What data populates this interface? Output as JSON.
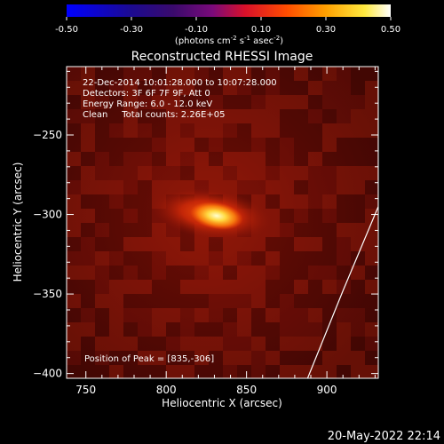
{
  "chart_data": {
    "type": "heatmap",
    "title": "Reconstructed RHESSI Image",
    "xlabel": "Heliocentric X (arcsec)",
    "ylabel": "Heliocentric Y (arcsec)",
    "xlim": [
      738,
      932
    ],
    "ylim": [
      -403,
      -207
    ],
    "xticks": [
      750,
      800,
      850,
      900
    ],
    "yticks": [
      -250,
      -300,
      -350,
      -400
    ],
    "colorbar": {
      "label": "(photons cm",
      "label_sup1": "-2",
      "label_mid": " s",
      "label_sup2": "-1",
      "label_mid2": " asec",
      "label_sup3": "-2",
      "label_end": ")",
      "range": [
        -0.5,
        0.5
      ],
      "ticks": [
        "-0.50",
        "-0.30",
        "-0.10",
        "0.10",
        "0.30",
        "0.50"
      ]
    },
    "annotations": [
      "22-Dec-2014 10:01:28.000 to 10:07:28.000",
      "Detectors: 3F 6F 7F 9F, Att 0",
      "Energy Range: 6.0 - 12.0 keV",
      "Clean     Total counts: 2.26E+05"
    ],
    "peak_text": "Position of Peak = [835,-306]",
    "peak": [
      835,
      -306
    ],
    "limb_line": [
      [
        888,
        -403
      ],
      [
        910,
        -348
      ],
      [
        932,
        -295
      ],
      [
        932,
        -210
      ]
    ],
    "timestamp": "20-May-2022 22:14"
  }
}
